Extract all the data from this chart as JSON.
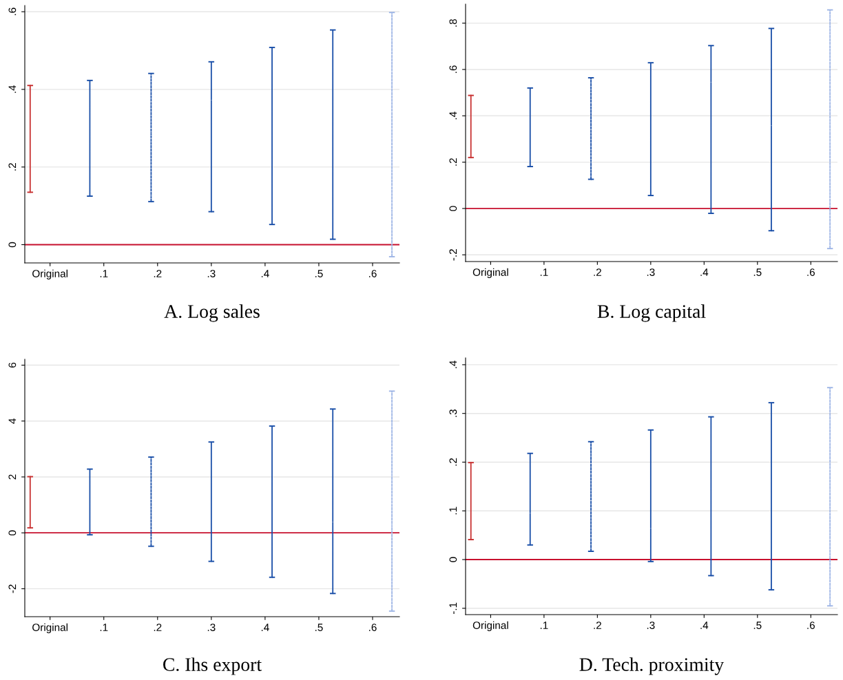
{
  "chart_data": [
    {
      "type": "bar",
      "title": "A. Log sales",
      "xlim": [
        -0.047,
        0.65
      ],
      "ylim": [
        -0.047,
        0.616
      ],
      "xticks": [
        {
          "value": 0,
          "label": "Original"
        },
        {
          "value": 0.1,
          "label": ".1"
        },
        {
          "value": 0.2,
          "label": ".2"
        },
        {
          "value": 0.3,
          "label": ".3"
        },
        {
          "value": 0.4,
          "label": ".4"
        },
        {
          "value": 0.5,
          "label": ".5"
        },
        {
          "value": 0.6,
          "label": ".6"
        }
      ],
      "yticks": [
        0,
        {
          "value": 0.2,
          "label": ".2"
        },
        {
          "value": 0.4,
          "label": ".4"
        },
        {
          "value": 0.6,
          "label": ".6"
        }
      ],
      "grid": "y",
      "ref_lines": [
        {
          "axis": "y",
          "value": 0,
          "color": "#c8102e"
        }
      ],
      "series": [
        {
          "x": [
            -0.037
          ],
          "base": [
            0.135
          ],
          "values": [
            0.275
          ],
          "color": "#c83232",
          "line_style": "solid"
        },
        {
          "x": [
            0.074
          ],
          "base": [
            0.125
          ],
          "values": [
            0.298
          ],
          "color": "#1a4fa8",
          "line_style": "dashed"
        },
        {
          "x": [
            0.188
          ],
          "base": [
            0.111
          ],
          "values": [
            0.33
          ],
          "color": "#1a4fa8",
          "line_style": "dotted"
        },
        {
          "x": [
            0.3
          ],
          "base": [
            0.085
          ],
          "values": [
            0.386
          ],
          "color": "#1a4fa8",
          "line_style": "dashed"
        },
        {
          "x": [
            0.413
          ],
          "base": [
            0.052
          ],
          "values": [
            0.456
          ],
          "color": "#1a4fa8",
          "line_style": "dashed"
        },
        {
          "x": [
            0.526
          ],
          "base": [
            0.014
          ],
          "values": [
            0.539
          ],
          "color": "#1a4fa8",
          "line_style": "dashed"
        },
        {
          "x": [
            0.636
          ],
          "base": [
            -0.031
          ],
          "values": [
            0.629
          ],
          "color": "#9fb6e6",
          "line_style": "dotted"
        }
      ]
    },
    {
      "type": "bar",
      "title": "B. Log capital",
      "xlim": [
        -0.047,
        0.65
      ],
      "ylim": [
        -0.229,
        0.882
      ],
      "xticks": [
        {
          "value": 0,
          "label": "Original"
        },
        {
          "value": 0.1,
          "label": ".1"
        },
        {
          "value": 0.2,
          "label": ".2"
        },
        {
          "value": 0.3,
          "label": ".3"
        },
        {
          "value": 0.4,
          "label": ".4"
        },
        {
          "value": 0.5,
          "label": ".5"
        },
        {
          "value": 0.6,
          "label": ".6"
        }
      ],
      "yticks": [
        {
          "value": -0.2,
          "label": "-.2"
        },
        0,
        {
          "value": 0.2,
          "label": ".2"
        },
        {
          "value": 0.4,
          "label": ".4"
        },
        {
          "value": 0.6,
          "label": ".6"
        },
        {
          "value": 0.8,
          "label": ".8"
        }
      ],
      "grid": "y",
      "ref_lines": [
        {
          "axis": "y",
          "value": 0,
          "color": "#c8102e"
        }
      ],
      "series": [
        {
          "x": [
            -0.037
          ],
          "base": [
            0.22
          ],
          "values": [
            0.268
          ],
          "color": "#c83232",
          "line_style": "solid"
        },
        {
          "x": [
            0.074
          ],
          "base": [
            0.181
          ],
          "values": [
            0.339
          ],
          "color": "#1a4fa8",
          "line_style": "dashed"
        },
        {
          "x": [
            0.188
          ],
          "base": [
            0.126
          ],
          "values": [
            0.438
          ],
          "color": "#1a4fa8",
          "line_style": "dotted"
        },
        {
          "x": [
            0.3
          ],
          "base": [
            0.056
          ],
          "values": [
            0.573
          ],
          "color": "#1a4fa8",
          "line_style": "dashed"
        },
        {
          "x": [
            0.413
          ],
          "base": [
            -0.021
          ],
          "values": [
            0.724
          ],
          "color": "#1a4fa8",
          "line_style": "dashed"
        },
        {
          "x": [
            0.526
          ],
          "base": [
            -0.096
          ],
          "values": [
            0.873
          ],
          "color": "#1a4fa8",
          "line_style": "dashed"
        },
        {
          "x": [
            0.636
          ],
          "base": [
            -0.173
          ],
          "values": [
            1.03
          ],
          "color": "#9fb6e6",
          "line_style": "dotted"
        }
      ]
    },
    {
      "type": "bar",
      "title": "C. Ihs export",
      "xlim": [
        -0.047,
        0.65
      ],
      "ylim": [
        -3.0,
        6.21
      ],
      "xticks": [
        {
          "value": 0,
          "label": "Original"
        },
        {
          "value": 0.1,
          "label": ".1"
        },
        {
          "value": 0.2,
          "label": ".2"
        },
        {
          "value": 0.3,
          "label": ".3"
        },
        {
          "value": 0.4,
          "label": ".4"
        },
        {
          "value": 0.5,
          "label": ".5"
        },
        {
          "value": 0.6,
          "label": ".6"
        }
      ],
      "yticks": [
        -2,
        0,
        2,
        4,
        6
      ],
      "grid": "y",
      "ref_lines": [
        {
          "axis": "y",
          "value": 0,
          "color": "#c8102e"
        }
      ],
      "series": [
        {
          "x": [
            -0.037
          ],
          "base": [
            0.18
          ],
          "values": [
            1.83
          ],
          "color": "#c83232",
          "line_style": "solid"
        },
        {
          "x": [
            0.074
          ],
          "base": [
            -0.07
          ],
          "values": [
            2.35
          ],
          "color": "#1a4fa8",
          "line_style": "dashed"
        },
        {
          "x": [
            0.188
          ],
          "base": [
            -0.48
          ],
          "values": [
            3.19
          ],
          "color": "#1a4fa8",
          "line_style": "dotted"
        },
        {
          "x": [
            0.3
          ],
          "base": [
            -1.02
          ],
          "values": [
            4.27
          ],
          "color": "#1a4fa8",
          "line_style": "dashed"
        },
        {
          "x": [
            0.413
          ],
          "base": [
            -1.59
          ],
          "values": [
            5.41
          ],
          "color": "#1a4fa8",
          "line_style": "dashed"
        },
        {
          "x": [
            0.526
          ],
          "base": [
            -2.17
          ],
          "values": [
            6.6
          ],
          "color": "#1a4fa8",
          "line_style": "dashed"
        },
        {
          "x": [
            0.636
          ],
          "base": [
            -2.8
          ],
          "values": [
            7.87
          ],
          "color": "#9fb6e6",
          "line_style": "dotted"
        }
      ]
    },
    {
      "type": "bar",
      "title": "D. Tech. proximity",
      "xlim": [
        -0.047,
        0.65
      ],
      "ylim": [
        -0.113,
        0.414
      ],
      "xticks": [
        {
          "value": 0,
          "label": "Original"
        },
        {
          "value": 0.1,
          "label": ".1"
        },
        {
          "value": 0.2,
          "label": ".2"
        },
        {
          "value": 0.3,
          "label": ".3"
        },
        {
          "value": 0.4,
          "label": ".4"
        },
        {
          "value": 0.5,
          "label": ".5"
        },
        {
          "value": 0.6,
          "label": ".6"
        }
      ],
      "yticks": [
        {
          "value": -0.1,
          "label": "-.1"
        },
        0,
        {
          "value": 0.1,
          "label": ".1"
        },
        {
          "value": 0.2,
          "label": ".2"
        },
        {
          "value": 0.3,
          "label": ".3"
        },
        {
          "value": 0.4,
          "label": ".4"
        }
      ],
      "grid": "y",
      "ref_lines": [
        {
          "axis": "y",
          "value": 0,
          "color": "#c8102e"
        }
      ],
      "series": [
        {
          "x": [
            -0.037
          ],
          "base": [
            0.041
          ],
          "values": [
            0.158
          ],
          "color": "#c83232",
          "line_style": "solid"
        },
        {
          "x": [
            0.074
          ],
          "base": [
            0.03
          ],
          "values": [
            0.188
          ],
          "color": "#1a4fa8",
          "line_style": "dashed"
        },
        {
          "x": [
            0.188
          ],
          "base": [
            0.017
          ],
          "values": [
            0.225
          ],
          "color": "#1a4fa8",
          "line_style": "dotted"
        },
        {
          "x": [
            0.3
          ],
          "base": [
            -0.004
          ],
          "values": [
            0.27
          ],
          "color": "#1a4fa8",
          "line_style": "dashed"
        },
        {
          "x": [
            0.413
          ],
          "base": [
            -0.033
          ],
          "values": [
            0.326
          ],
          "color": "#1a4fa8",
          "line_style": "dashed"
        },
        {
          "x": [
            0.526
          ],
          "base": [
            -0.062
          ],
          "values": [
            0.384
          ],
          "color": "#1a4fa8",
          "line_style": "dashed"
        },
        {
          "x": [
            0.636
          ],
          "base": [
            -0.095
          ],
          "values": [
            0.448
          ],
          "color": "#9fb6e6",
          "line_style": "dotted"
        }
      ]
    }
  ]
}
